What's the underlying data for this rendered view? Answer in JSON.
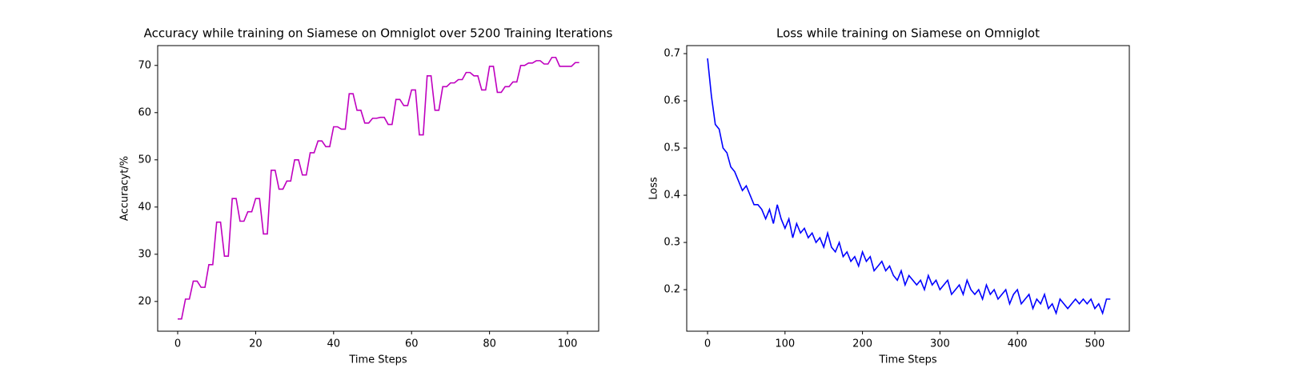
{
  "chart_data": [
    {
      "type": "line",
      "title": "Accuracy while training on Siamese on Omniglot over 5200 Training Iterations",
      "xlabel": "Time Steps",
      "ylabel": "Accuracyt/%",
      "color": "#bf00bf",
      "x": [
        0,
        1,
        2,
        3,
        4,
        5,
        6,
        7,
        8,
        9,
        10,
        11,
        12,
        13,
        14,
        15,
        16,
        17,
        18,
        19,
        20,
        21,
        22,
        23,
        24,
        25,
        26,
        27,
        28,
        29,
        30,
        31,
        32,
        33,
        34,
        35,
        36,
        37,
        38,
        39,
        40,
        41,
        42,
        43,
        44,
        45,
        46,
        47,
        48,
        49,
        50,
        51,
        52,
        53,
        54,
        55,
        56,
        57,
        58,
        59,
        60,
        61,
        62,
        63,
        64,
        65,
        66,
        67,
        68,
        69,
        70,
        71,
        72,
        73,
        74,
        75,
        76,
        77,
        78,
        79,
        80,
        81,
        82,
        83,
        84,
        85,
        86,
        87,
        88,
        89,
        90,
        91,
        92,
        93,
        94,
        95,
        96,
        97,
        98,
        99,
        100,
        101,
        102,
        103
      ],
      "values": [
        16.3,
        16.3,
        20.5,
        20.5,
        24.3,
        24.3,
        23,
        23,
        27.8,
        27.8,
        36.8,
        36.8,
        29.6,
        29.6,
        41.8,
        41.8,
        37,
        37,
        39,
        39,
        41.8,
        41.8,
        34.3,
        34.3,
        47.8,
        47.8,
        43.8,
        43.8,
        45.5,
        45.5,
        50,
        50,
        46.8,
        46.8,
        51.5,
        51.5,
        54,
        54,
        52.8,
        52.8,
        57,
        57,
        56.5,
        56.5,
        64,
        64,
        60.5,
        60.5,
        57.8,
        57.8,
        58.8,
        58.8,
        59,
        59,
        57.5,
        57.5,
        62.8,
        62.8,
        61.5,
        61.5,
        64.8,
        64.8,
        55.3,
        55.3,
        67.8,
        67.8,
        60.5,
        60.5,
        65.5,
        65.5,
        66.3,
        66.3,
        67,
        67,
        68.5,
        68.5,
        67.8,
        67.8,
        64.8,
        64.8,
        69.8,
        69.8,
        64.3,
        64.3,
        65.5,
        65.5,
        66.5,
        66.5,
        70,
        70,
        70.5,
        70.5,
        71,
        71,
        70.3,
        70.3,
        71.7,
        71.7,
        69.8,
        69.8,
        69.8,
        69.8,
        70.6,
        70.6
      ],
      "xlim": [
        -5.13,
        108
      ],
      "ylim": [
        13.7,
        74.2
      ],
      "xticks": [
        0,
        20,
        40,
        60,
        80,
        100
      ],
      "yticks": [
        20,
        30,
        40,
        50,
        60,
        70
      ]
    },
    {
      "type": "line",
      "title": "Loss while training on Siamese on Omniglot",
      "xlabel": "Time Steps",
      "ylabel": "Loss",
      "color": "#0000ff",
      "x": [
        0,
        5,
        10,
        15,
        20,
        25,
        30,
        35,
        40,
        45,
        50,
        55,
        60,
        65,
        70,
        75,
        80,
        85,
        90,
        95,
        100,
        105,
        110,
        115,
        120,
        125,
        130,
        135,
        140,
        145,
        150,
        155,
        160,
        165,
        170,
        175,
        180,
        185,
        190,
        195,
        200,
        205,
        210,
        215,
        220,
        225,
        230,
        235,
        240,
        245,
        250,
        255,
        260,
        265,
        270,
        275,
        280,
        285,
        290,
        295,
        300,
        305,
        310,
        315,
        320,
        325,
        330,
        335,
        340,
        345,
        350,
        355,
        360,
        365,
        370,
        375,
        380,
        385,
        390,
        395,
        400,
        405,
        410,
        415,
        420,
        425,
        430,
        435,
        440,
        445,
        450,
        455,
        460,
        465,
        470,
        475,
        480,
        485,
        490,
        495,
        500,
        505,
        510,
        515,
        520
      ],
      "values": [
        0.69,
        0.61,
        0.55,
        0.54,
        0.5,
        0.49,
        0.46,
        0.45,
        0.43,
        0.41,
        0.42,
        0.4,
        0.38,
        0.38,
        0.37,
        0.35,
        0.37,
        0.34,
        0.38,
        0.35,
        0.33,
        0.35,
        0.31,
        0.34,
        0.32,
        0.33,
        0.31,
        0.32,
        0.3,
        0.31,
        0.29,
        0.32,
        0.29,
        0.28,
        0.3,
        0.27,
        0.28,
        0.26,
        0.27,
        0.25,
        0.28,
        0.26,
        0.27,
        0.24,
        0.25,
        0.26,
        0.24,
        0.25,
        0.23,
        0.22,
        0.24,
        0.21,
        0.23,
        0.22,
        0.21,
        0.22,
        0.2,
        0.23,
        0.21,
        0.22,
        0.2,
        0.21,
        0.22,
        0.19,
        0.2,
        0.21,
        0.19,
        0.22,
        0.2,
        0.19,
        0.2,
        0.18,
        0.21,
        0.19,
        0.2,
        0.18,
        0.19,
        0.2,
        0.17,
        0.19,
        0.2,
        0.17,
        0.18,
        0.19,
        0.16,
        0.18,
        0.17,
        0.19,
        0.16,
        0.17,
        0.15,
        0.18,
        0.17,
        0.16,
        0.17,
        0.18,
        0.17,
        0.18,
        0.17,
        0.18,
        0.16,
        0.17,
        0.15,
        0.18,
        0.18
      ],
      "xlim": [
        -26.9,
        544.5
      ],
      "ylim": [
        0.112,
        0.717
      ],
      "xticks": [
        0,
        100,
        200,
        300,
        400,
        500
      ],
      "yticks": [
        0.2,
        0.3,
        0.4,
        0.5,
        0.6,
        0.7
      ]
    }
  ]
}
